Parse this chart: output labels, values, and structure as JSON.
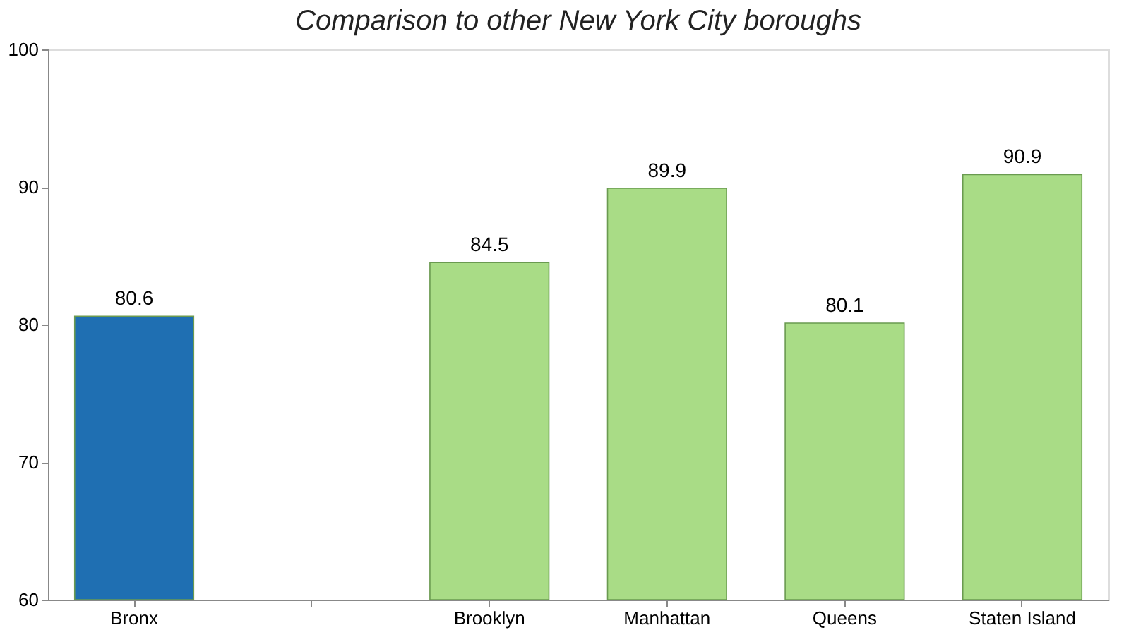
{
  "chart_data": {
    "type": "bar",
    "title": "Comparison to other New York City boroughs",
    "categories": [
      "Bronx",
      null,
      "Brooklyn",
      "Manhattan",
      "Queens",
      "Staten Island"
    ],
    "values": [
      80.6,
      null,
      84.5,
      89.9,
      80.1,
      90.9
    ],
    "colors": [
      "#1f6fb2",
      null,
      "#a9dc86",
      "#a9dc86",
      "#a9dc86",
      "#a9dc86"
    ],
    "ylim": [
      60,
      100
    ],
    "yticks": [
      60,
      70,
      80,
      90,
      100
    ],
    "grid": false,
    "data_labels": true
  }
}
